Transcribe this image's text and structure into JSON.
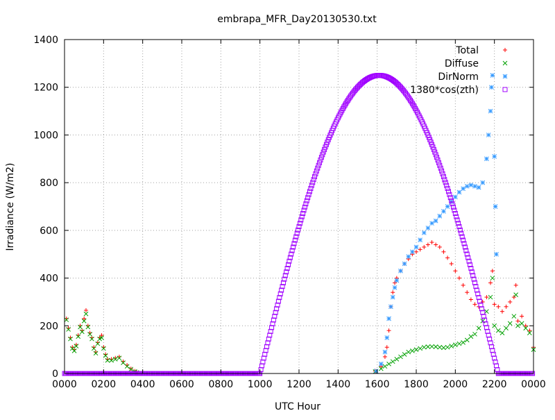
{
  "chart_data": {
    "type": "scatter",
    "title": "embrapa_MFR_Day20130530.txt",
    "xlabel": "UTC Hour",
    "ylabel": "Irradiance (W/m2)",
    "xlim": [
      0,
      24
    ],
    "ylim": [
      0,
      1400
    ],
    "x_ticks": [
      {
        "v": 0,
        "label": "0000"
      },
      {
        "v": 2,
        "label": "0200"
      },
      {
        "v": 4,
        "label": "0400"
      },
      {
        "v": 6,
        "label": "0600"
      },
      {
        "v": 8,
        "label": "0800"
      },
      {
        "v": 10,
        "label": "1000"
      },
      {
        "v": 12,
        "label": "1200"
      },
      {
        "v": 14,
        "label": "1400"
      },
      {
        "v": 16,
        "label": "1600"
      },
      {
        "v": 18,
        "label": "1800"
      },
      {
        "v": 20,
        "label": "2000"
      },
      {
        "v": 22,
        "label": "2200"
      },
      {
        "v": 24,
        "label": "0000"
      }
    ],
    "y_ticks": [
      0,
      200,
      400,
      600,
      800,
      1000,
      1200,
      1400
    ],
    "grid": true,
    "legend_position": "top-right",
    "series": [
      {
        "name": "Total",
        "marker": "plus",
        "color": "#ff0000",
        "points": [
          [
            0.1,
            230
          ],
          [
            0.2,
            190
          ],
          [
            0.3,
            150
          ],
          [
            0.4,
            110
          ],
          [
            0.5,
            100
          ],
          [
            0.6,
            120
          ],
          [
            0.7,
            160
          ],
          [
            0.8,
            200
          ],
          [
            0.9,
            180
          ],
          [
            1.0,
            230
          ],
          [
            1.1,
            265
          ],
          [
            1.2,
            200
          ],
          [
            1.3,
            170
          ],
          [
            1.4,
            150
          ],
          [
            1.5,
            110
          ],
          [
            1.6,
            90
          ],
          [
            1.7,
            130
          ],
          [
            1.8,
            150
          ],
          [
            1.9,
            160
          ],
          [
            2.0,
            110
          ],
          [
            2.1,
            80
          ],
          [
            2.2,
            60
          ],
          [
            2.4,
            60
          ],
          [
            2.6,
            65
          ],
          [
            2.8,
            70
          ],
          [
            3.0,
            50
          ],
          [
            3.2,
            35
          ],
          [
            3.4,
            20
          ],
          [
            3.6,
            10
          ],
          [
            3.7,
            5
          ],
          [
            15.9,
            10
          ],
          [
            16.2,
            30
          ],
          [
            16.4,
            70
          ],
          [
            16.5,
            110
          ],
          [
            16.6,
            180
          ],
          [
            16.7,
            280
          ],
          [
            16.8,
            340
          ],
          [
            16.9,
            380
          ],
          [
            17.0,
            400
          ],
          [
            17.2,
            430
          ],
          [
            17.4,
            460
          ],
          [
            17.6,
            480
          ],
          [
            17.8,
            500
          ],
          [
            18.0,
            510
          ],
          [
            18.2,
            520
          ],
          [
            18.4,
            530
          ],
          [
            18.6,
            540
          ],
          [
            18.8,
            550
          ],
          [
            19.0,
            540
          ],
          [
            19.2,
            530
          ],
          [
            19.4,
            510
          ],
          [
            19.6,
            485
          ],
          [
            19.8,
            460
          ],
          [
            20.0,
            430
          ],
          [
            20.2,
            400
          ],
          [
            20.4,
            370
          ],
          [
            20.6,
            340
          ],
          [
            20.8,
            310
          ],
          [
            21.0,
            290
          ],
          [
            21.2,
            280
          ],
          [
            21.4,
            300
          ],
          [
            21.6,
            320
          ],
          [
            21.8,
            380
          ],
          [
            21.9,
            430
          ],
          [
            22.0,
            290
          ],
          [
            22.2,
            280
          ],
          [
            22.4,
            260
          ],
          [
            22.6,
            280
          ],
          [
            22.8,
            300
          ],
          [
            23.0,
            320
          ],
          [
            23.1,
            370
          ],
          [
            23.2,
            220
          ],
          [
            23.4,
            240
          ],
          [
            23.6,
            200
          ],
          [
            23.8,
            180
          ],
          [
            24.0,
            110
          ]
        ]
      },
      {
        "name": "Diffuse",
        "marker": "cross",
        "color": "#00a000",
        "points": [
          [
            0.1,
            225
          ],
          [
            0.2,
            185
          ],
          [
            0.3,
            145
          ],
          [
            0.4,
            105
          ],
          [
            0.5,
            95
          ],
          [
            0.6,
            115
          ],
          [
            0.7,
            155
          ],
          [
            0.8,
            195
          ],
          [
            0.9,
            175
          ],
          [
            1.0,
            220
          ],
          [
            1.1,
            250
          ],
          [
            1.2,
            195
          ],
          [
            1.3,
            165
          ],
          [
            1.4,
            145
          ],
          [
            1.5,
            105
          ],
          [
            1.6,
            85
          ],
          [
            1.7,
            125
          ],
          [
            1.8,
            145
          ],
          [
            1.9,
            150
          ],
          [
            2.0,
            105
          ],
          [
            2.1,
            75
          ],
          [
            2.2,
            55
          ],
          [
            2.4,
            55
          ],
          [
            2.6,
            60
          ],
          [
            2.8,
            65
          ],
          [
            3.0,
            45
          ],
          [
            3.2,
            30
          ],
          [
            3.4,
            18
          ],
          [
            3.6,
            8
          ],
          [
            3.7,
            4
          ],
          [
            15.9,
            8
          ],
          [
            16.2,
            20
          ],
          [
            16.4,
            30
          ],
          [
            16.6,
            40
          ],
          [
            16.8,
            50
          ],
          [
            17.0,
            60
          ],
          [
            17.2,
            70
          ],
          [
            17.4,
            80
          ],
          [
            17.6,
            90
          ],
          [
            17.8,
            95
          ],
          [
            18.0,
            100
          ],
          [
            18.2,
            105
          ],
          [
            18.4,
            110
          ],
          [
            18.6,
            112
          ],
          [
            18.8,
            113
          ],
          [
            19.0,
            112
          ],
          [
            19.2,
            110
          ],
          [
            19.4,
            108
          ],
          [
            19.6,
            110
          ],
          [
            19.8,
            115
          ],
          [
            20.0,
            120
          ],
          [
            20.2,
            125
          ],
          [
            20.4,
            130
          ],
          [
            20.6,
            140
          ],
          [
            20.8,
            155
          ],
          [
            21.0,
            165
          ],
          [
            21.2,
            190
          ],
          [
            21.4,
            220
          ],
          [
            21.6,
            260
          ],
          [
            21.8,
            320
          ],
          [
            21.9,
            400
          ],
          [
            22.0,
            200
          ],
          [
            22.2,
            180
          ],
          [
            22.4,
            170
          ],
          [
            22.6,
            190
          ],
          [
            22.8,
            210
          ],
          [
            23.0,
            240
          ],
          [
            23.1,
            330
          ],
          [
            23.2,
            200
          ],
          [
            23.4,
            210
          ],
          [
            23.6,
            190
          ],
          [
            23.8,
            170
          ],
          [
            24.0,
            100
          ]
        ]
      },
      {
        "name": "DirNorm",
        "marker": "star",
        "color": "#3399ff",
        "points": [
          [
            15.95,
            10
          ],
          [
            16.2,
            40
          ],
          [
            16.4,
            90
          ],
          [
            16.5,
            150
          ],
          [
            16.6,
            230
          ],
          [
            16.7,
            280
          ],
          [
            16.8,
            320
          ],
          [
            16.9,
            360
          ],
          [
            17.0,
            390
          ],
          [
            17.2,
            430
          ],
          [
            17.4,
            460
          ],
          [
            17.6,
            490
          ],
          [
            17.8,
            510
          ],
          [
            18.0,
            530
          ],
          [
            18.2,
            560
          ],
          [
            18.4,
            590
          ],
          [
            18.6,
            610
          ],
          [
            18.8,
            630
          ],
          [
            19.0,
            640
          ],
          [
            19.2,
            660
          ],
          [
            19.4,
            680
          ],
          [
            19.6,
            700
          ],
          [
            19.8,
            720
          ],
          [
            20.0,
            740
          ],
          [
            20.2,
            760
          ],
          [
            20.4,
            775
          ],
          [
            20.6,
            785
          ],
          [
            20.8,
            790
          ],
          [
            21.0,
            785
          ],
          [
            21.2,
            780
          ],
          [
            21.4,
            800
          ],
          [
            21.6,
            900
          ],
          [
            21.7,
            1000
          ],
          [
            21.8,
            1100
          ],
          [
            21.85,
            1200
          ],
          [
            21.9,
            1250
          ],
          [
            22.0,
            910
          ],
          [
            22.05,
            700
          ],
          [
            22.1,
            500
          ]
        ]
      },
      {
        "name": "1380*cos(zth)",
        "marker": "square",
        "color": "#a000ff",
        "curve": {
          "rise": 10.0,
          "set": 22.2,
          "peak_x": 16.1,
          "peak_y": 1250
        },
        "baseline_y": 0
      }
    ]
  }
}
